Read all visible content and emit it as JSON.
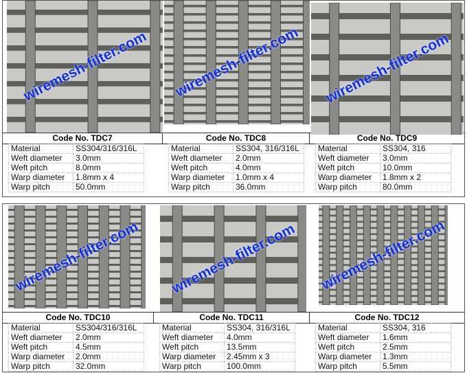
{
  "watermark": "wiremesh-filter.com",
  "code_prefix": "Code No.",
  "labels": [
    "Material",
    "Weft diameter",
    "Weft pitch",
    "Warp diameter",
    "Warp pitch"
  ],
  "products": [
    {
      "code": "Code No. TDC7",
      "values": [
        "SS304/316/316L",
        "3.0mm",
        "8.0mm",
        "1.8mm x 4",
        "50.0mm"
      ]
    },
    {
      "code": "Code No. TDC8",
      "values": [
        "SS304, 316/316L",
        "2.0mm",
        "4.0mm",
        "1.0mm x 4",
        "36.0mm"
      ]
    },
    {
      "code": "Code No. TDC9",
      "values": [
        "SS304, 316",
        "3.0mm",
        "10.0mm",
        "1.8mm x 2",
        "80.0mm"
      ]
    },
    {
      "code": "Code No. TDC10",
      "values": [
        "SS304/316/316L",
        "2.0mm",
        "4.5mm",
        "2.0mm",
        "32.0mm"
      ]
    },
    {
      "code": "Code No. TDC11",
      "values": [
        "SS304, 316/316L",
        "4.0mm",
        "13.5mm",
        "2.45mm x 3",
        "100.0mm"
      ]
    },
    {
      "code": "Code No. TDC12",
      "values": [
        "SS304, 316",
        "1.6mm",
        "2.5mm",
        "1.3mm",
        "5.5mm"
      ]
    }
  ],
  "colors": {
    "watermark": "#1030e0",
    "mesh_bg": "#c9c9c6",
    "wire": "#6d6d6a"
  }
}
